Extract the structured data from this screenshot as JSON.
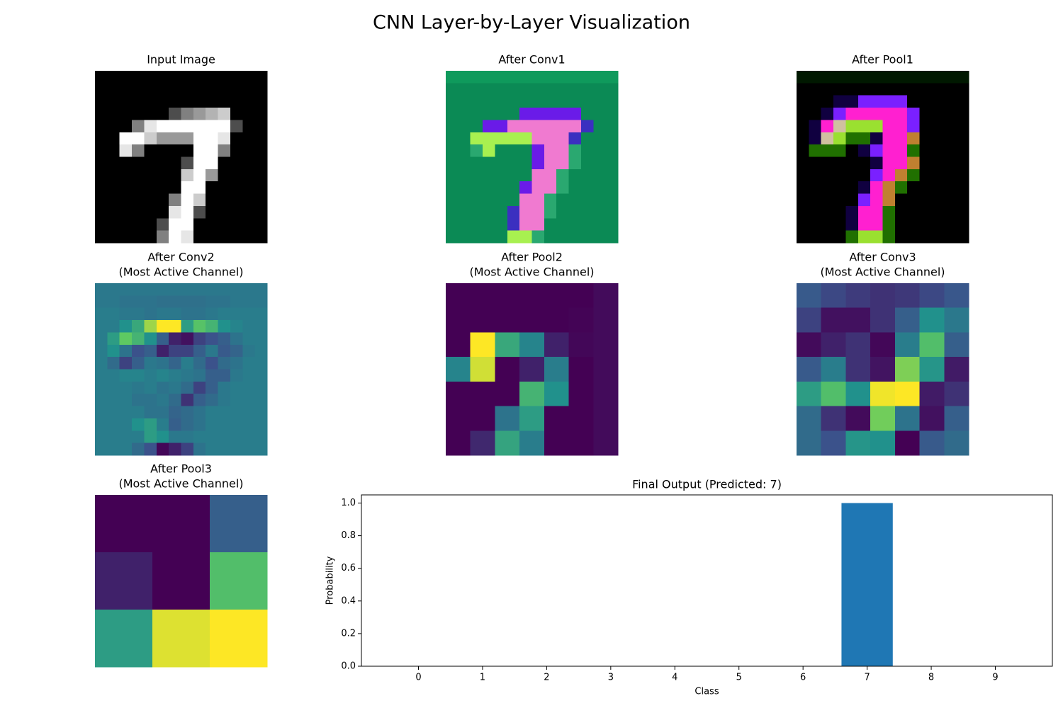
{
  "title": "CNN Layer-by-Layer Visualization",
  "chart_data": [
    {
      "type": "heatmap",
      "title": "Input Image",
      "cmap": "gray",
      "values": [
        [
          0,
          0,
          0,
          0,
          0,
          0,
          0,
          0,
          0,
          0,
          0,
          0,
          0,
          0
        ],
        [
          0,
          0,
          0,
          0,
          0,
          0,
          0,
          0,
          0,
          0,
          0,
          0,
          0,
          0
        ],
        [
          0,
          0,
          0,
          0,
          0,
          0,
          0,
          0,
          0,
          0,
          0,
          0,
          0,
          0
        ],
        [
          0,
          0,
          0,
          0,
          0,
          0,
          0.3,
          0.5,
          0.6,
          0.7,
          0.8,
          0,
          0,
          0
        ],
        [
          0,
          0,
          0,
          0.5,
          0.9,
          1,
          1,
          1,
          1,
          1,
          1,
          0.3,
          0,
          0
        ],
        [
          0,
          0,
          1,
          1,
          0.8,
          0.6,
          0.6,
          0.6,
          1,
          1,
          0.9,
          0,
          0,
          0
        ],
        [
          0,
          0,
          0.9,
          0.5,
          0,
          0,
          0,
          0,
          1,
          1,
          0.5,
          0,
          0,
          0
        ],
        [
          0,
          0,
          0,
          0,
          0,
          0,
          0,
          0.3,
          1,
          1,
          0,
          0,
          0,
          0
        ],
        [
          0,
          0,
          0,
          0,
          0,
          0,
          0,
          0.8,
          1,
          0.6,
          0,
          0,
          0,
          0
        ],
        [
          0,
          0,
          0,
          0,
          0,
          0,
          0,
          1,
          1,
          0,
          0,
          0,
          0,
          0
        ],
        [
          0,
          0,
          0,
          0,
          0,
          0,
          0.5,
          1,
          0.8,
          0,
          0,
          0,
          0,
          0
        ],
        [
          0,
          0,
          0,
          0,
          0,
          0,
          0.9,
          1,
          0.3,
          0,
          0,
          0,
          0,
          0
        ],
        [
          0,
          0,
          0,
          0,
          0,
          0.3,
          1,
          1,
          0,
          0,
          0,
          0,
          0,
          0
        ],
        [
          0,
          0,
          0,
          0,
          0,
          0.5,
          1,
          0.9,
          0,
          0,
          0,
          0,
          0,
          0
        ]
      ]
    },
    {
      "type": "image",
      "title": "After Conv1",
      "pixels": [
        [
          "#0f9a5c",
          "#0f9a5c",
          "#0f9a5c",
          "#0f9a5c",
          "#0f9a5c",
          "#0f9a5c",
          "#0f9a5c",
          "#0f9a5c",
          "#0f9a5c",
          "#0f9a5c",
          "#0f9a5c",
          "#0f9a5c",
          "#0f9a5c",
          "#0f9a5c"
        ],
        [
          "#0b8a55",
          "#0b8a55",
          "#0b8a55",
          "#0b8a55",
          "#0b8a55",
          "#0b8a55",
          "#0b8a55",
          "#0b8a55",
          "#0b8a55",
          "#0b8a55",
          "#0b8a55",
          "#0b8a55",
          "#0b8a55",
          "#0b8a55"
        ],
        [
          "#0b8a55",
          "#0b8a55",
          "#0b8a55",
          "#0b8a55",
          "#0b8a55",
          "#0b8a55",
          "#0b8a55",
          "#0b8a55",
          "#0b8a55",
          "#0b8a55",
          "#0b8a55",
          "#0b8a55",
          "#0b8a55",
          "#0b8a55"
        ],
        [
          "#0b8a55",
          "#0b8a55",
          "#0b8a55",
          "#0b8a55",
          "#0b8a55",
          "#0b8a55",
          "#6a1be8",
          "#6a1be8",
          "#6a1be8",
          "#6a1be8",
          "#6a1be8",
          "#0b8a55",
          "#0b8a55",
          "#0b8a55"
        ],
        [
          "#0b8a55",
          "#0b8a55",
          "#0b8a55",
          "#6a1be8",
          "#6a1be8",
          "#f07ad0",
          "#f07ad0",
          "#f07ad0",
          "#f07ad0",
          "#f07ad0",
          "#f07ad0",
          "#3b2fc0",
          "#0b8a55",
          "#0b8a55"
        ],
        [
          "#0b8a55",
          "#0b8a55",
          "#a8f050",
          "#a8f050",
          "#a8f050",
          "#a8f050",
          "#a8f050",
          "#f07ad0",
          "#f07ad0",
          "#f07ad0",
          "#3b2fc0",
          "#0b8a55",
          "#0b8a55",
          "#0b8a55"
        ],
        [
          "#0b8a55",
          "#0b8a55",
          "#2aa870",
          "#a8f050",
          "#0b8a55",
          "#0b8a55",
          "#0b8a55",
          "#6a1be8",
          "#f07ad0",
          "#f07ad0",
          "#2aa870",
          "#0b8a55",
          "#0b8a55",
          "#0b8a55"
        ],
        [
          "#0b8a55",
          "#0b8a55",
          "#0b8a55",
          "#0b8a55",
          "#0b8a55",
          "#0b8a55",
          "#0b8a55",
          "#6a1be8",
          "#f07ad0",
          "#f07ad0",
          "#2aa870",
          "#0b8a55",
          "#0b8a55",
          "#0b8a55"
        ],
        [
          "#0b8a55",
          "#0b8a55",
          "#0b8a55",
          "#0b8a55",
          "#0b8a55",
          "#0b8a55",
          "#0b8a55",
          "#f07ad0",
          "#f07ad0",
          "#2aa870",
          "#0b8a55",
          "#0b8a55",
          "#0b8a55",
          "#0b8a55"
        ],
        [
          "#0b8a55",
          "#0b8a55",
          "#0b8a55",
          "#0b8a55",
          "#0b8a55",
          "#0b8a55",
          "#6a1be8",
          "#f07ad0",
          "#f07ad0",
          "#2aa870",
          "#0b8a55",
          "#0b8a55",
          "#0b8a55",
          "#0b8a55"
        ],
        [
          "#0b8a55",
          "#0b8a55",
          "#0b8a55",
          "#0b8a55",
          "#0b8a55",
          "#0b8a55",
          "#f07ad0",
          "#f07ad0",
          "#2aa870",
          "#0b8a55",
          "#0b8a55",
          "#0b8a55",
          "#0b8a55",
          "#0b8a55"
        ],
        [
          "#0b8a55",
          "#0b8a55",
          "#0b8a55",
          "#0b8a55",
          "#0b8a55",
          "#3b2fc0",
          "#f07ad0",
          "#f07ad0",
          "#2aa870",
          "#0b8a55",
          "#0b8a55",
          "#0b8a55",
          "#0b8a55",
          "#0b8a55"
        ],
        [
          "#0b8a55",
          "#0b8a55",
          "#0b8a55",
          "#0b8a55",
          "#0b8a55",
          "#3b2fc0",
          "#f07ad0",
          "#f07ad0",
          "#0b8a55",
          "#0b8a55",
          "#0b8a55",
          "#0b8a55",
          "#0b8a55",
          "#0b8a55"
        ],
        [
          "#0b8a55",
          "#0b8a55",
          "#0b8a55",
          "#0b8a55",
          "#0b8a55",
          "#a8f050",
          "#a8f050",
          "#2aa870",
          "#0b8a55",
          "#0b8a55",
          "#0b8a55",
          "#0b8a55",
          "#0b8a55",
          "#0b8a55"
        ]
      ]
    },
    {
      "type": "image",
      "title": "After Pool1",
      "pixels": [
        [
          "#001800",
          "#001800",
          "#001800",
          "#001800",
          "#001800",
          "#001800",
          "#001800",
          "#001800",
          "#001800",
          "#001800",
          "#001800",
          "#001800",
          "#001800",
          "#001800"
        ],
        [
          "#000000",
          "#000000",
          "#000000",
          "#000000",
          "#000000",
          "#000000",
          "#000000",
          "#000000",
          "#000000",
          "#000000",
          "#000000",
          "#000000",
          "#000000",
          "#000000"
        ],
        [
          "#000000",
          "#000000",
          "#000000",
          "#100040",
          "#100040",
          "#7a20ff",
          "#7a20ff",
          "#7a20ff",
          "#7a20ff",
          "#000000",
          "#000000",
          "#000000",
          "#000000",
          "#000000"
        ],
        [
          "#000000",
          "#000000",
          "#100040",
          "#7a20ff",
          "#ff20d0",
          "#ff20d0",
          "#ff20d0",
          "#ff20d0",
          "#ff20d0",
          "#7a20ff",
          "#000000",
          "#000000",
          "#000000",
          "#000000"
        ],
        [
          "#000000",
          "#100040",
          "#ff20d0",
          "#d0c0a0",
          "#9ae030",
          "#9ae030",
          "#9ae030",
          "#ff20d0",
          "#ff20d0",
          "#7a20ff",
          "#000000",
          "#000000",
          "#000000",
          "#000000"
        ],
        [
          "#000000",
          "#100040",
          "#d0c0a0",
          "#9ae030",
          "#207000",
          "#207000",
          "#100040",
          "#ff20d0",
          "#ff20d0",
          "#c08030",
          "#000000",
          "#000000",
          "#000000",
          "#000000"
        ],
        [
          "#000000",
          "#207000",
          "#207000",
          "#207000",
          "#000000",
          "#100040",
          "#7a20ff",
          "#ff20d0",
          "#ff20d0",
          "#207000",
          "#000000",
          "#000000",
          "#000000",
          "#000000"
        ],
        [
          "#000000",
          "#000000",
          "#000000",
          "#000000",
          "#000000",
          "#000000",
          "#100040",
          "#ff20d0",
          "#ff20d0",
          "#c08030",
          "#000000",
          "#000000",
          "#000000",
          "#000000"
        ],
        [
          "#000000",
          "#000000",
          "#000000",
          "#000000",
          "#000000",
          "#000000",
          "#7a20ff",
          "#ff20d0",
          "#c08030",
          "#207000",
          "#000000",
          "#000000",
          "#000000",
          "#000000"
        ],
        [
          "#000000",
          "#000000",
          "#000000",
          "#000000",
          "#000000",
          "#100040",
          "#ff20d0",
          "#c08030",
          "#207000",
          "#000000",
          "#000000",
          "#000000",
          "#000000",
          "#000000"
        ],
        [
          "#000000",
          "#000000",
          "#000000",
          "#000000",
          "#000000",
          "#7a20ff",
          "#ff20d0",
          "#c08030",
          "#000000",
          "#000000",
          "#000000",
          "#000000",
          "#000000",
          "#000000"
        ],
        [
          "#000000",
          "#000000",
          "#000000",
          "#000000",
          "#100040",
          "#ff20d0",
          "#ff20d0",
          "#207000",
          "#000000",
          "#000000",
          "#000000",
          "#000000",
          "#000000",
          "#000000"
        ],
        [
          "#000000",
          "#000000",
          "#000000",
          "#000000",
          "#100040",
          "#ff20d0",
          "#ff20d0",
          "#207000",
          "#000000",
          "#000000",
          "#000000",
          "#000000",
          "#000000",
          "#000000"
        ],
        [
          "#000000",
          "#000000",
          "#000000",
          "#000000",
          "#207000",
          "#9ae030",
          "#9ae030",
          "#207000",
          "#000000",
          "#000000",
          "#000000",
          "#000000",
          "#000000",
          "#000000"
        ]
      ]
    },
    {
      "type": "heatmap",
      "title": "After Conv2",
      "subtitle": "(Most Active Channel)",
      "cmap": "viridis",
      "values": [
        [
          0.4,
          0.4,
          0.4,
          0.4,
          0.4,
          0.4,
          0.4,
          0.4,
          0.4,
          0.4,
          0.4,
          0.4,
          0.4,
          0.4
        ],
        [
          0.4,
          0.4,
          0.38,
          0.38,
          0.38,
          0.37,
          0.37,
          0.37,
          0.37,
          0.38,
          0.38,
          0.4,
          0.4,
          0.4
        ],
        [
          0.42,
          0.42,
          0.4,
          0.4,
          0.38,
          0.4,
          0.4,
          0.38,
          0.38,
          0.4,
          0.42,
          0.42,
          0.42,
          0.42
        ],
        [
          0.42,
          0.42,
          0.5,
          0.6,
          0.85,
          1,
          1,
          0.55,
          0.72,
          0.65,
          0.5,
          0.45,
          0.42,
          0.42
        ],
        [
          0.42,
          0.55,
          0.75,
          0.65,
          0.5,
          0.3,
          0.1,
          0.05,
          0.2,
          0.25,
          0.3,
          0.38,
          0.42,
          0.42
        ],
        [
          0.42,
          0.5,
          0.38,
          0.25,
          0.3,
          0.1,
          0.2,
          0.2,
          0.3,
          0.4,
          0.28,
          0.32,
          0.4,
          0.42
        ],
        [
          0.42,
          0.35,
          0.2,
          0.3,
          0.4,
          0.38,
          0.32,
          0.42,
          0.35,
          0.25,
          0.35,
          0.38,
          0.42,
          0.42
        ],
        [
          0.42,
          0.42,
          0.45,
          0.45,
          0.42,
          0.45,
          0.42,
          0.4,
          0.38,
          0.3,
          0.3,
          0.4,
          0.42,
          0.42
        ],
        [
          0.42,
          0.42,
          0.42,
          0.4,
          0.42,
          0.38,
          0.4,
          0.35,
          0.2,
          0.3,
          0.4,
          0.42,
          0.42,
          0.42
        ],
        [
          0.42,
          0.42,
          0.42,
          0.38,
          0.38,
          0.4,
          0.35,
          0.15,
          0.3,
          0.35,
          0.4,
          0.42,
          0.42,
          0.42
        ],
        [
          0.42,
          0.42,
          0.42,
          0.42,
          0.38,
          0.38,
          0.32,
          0.35,
          0.38,
          0.42,
          0.42,
          0.42,
          0.42,
          0.42
        ],
        [
          0.42,
          0.42,
          0.42,
          0.5,
          0.55,
          0.42,
          0.3,
          0.35,
          0.38,
          0.42,
          0.42,
          0.42,
          0.42,
          0.42
        ],
        [
          0.42,
          0.42,
          0.42,
          0.42,
          0.55,
          0.5,
          0.4,
          0.4,
          0.42,
          0.42,
          0.42,
          0.42,
          0.42,
          0.42
        ],
        [
          0.42,
          0.42,
          0.42,
          0.35,
          0.25,
          0.02,
          0.1,
          0.2,
          0.38,
          0.42,
          0.42,
          0.42,
          0.42,
          0.42
        ]
      ]
    },
    {
      "type": "heatmap",
      "title": "After Pool2",
      "subtitle": "(Most Active Channel)",
      "cmap": "viridis",
      "values": [
        [
          0,
          0,
          0,
          0,
          0,
          0,
          0.03
        ],
        [
          0,
          0,
          0,
          0,
          0,
          0.01,
          0.03
        ],
        [
          0,
          1,
          0.6,
          0.45,
          0.1,
          0.02,
          0.03
        ],
        [
          0.45,
          0.93,
          0,
          0.1,
          0.42,
          0,
          0.03
        ],
        [
          0,
          0,
          0,
          0.65,
          0.5,
          0,
          0.03
        ],
        [
          0,
          0,
          0.38,
          0.55,
          0,
          0,
          0.03
        ],
        [
          0,
          0.12,
          0.58,
          0.42,
          0,
          0,
          0.03
        ]
      ]
    },
    {
      "type": "heatmap",
      "title": "After Conv3",
      "subtitle": "(Most Active Channel)",
      "cmap": "viridis",
      "values": [
        [
          0.28,
          0.22,
          0.18,
          0.15,
          0.17,
          0.22,
          0.27
        ],
        [
          0.2,
          0.05,
          0.05,
          0.15,
          0.3,
          0.5,
          0.4
        ],
        [
          0.03,
          0.1,
          0.15,
          0.02,
          0.42,
          0.7,
          0.3
        ],
        [
          0.28,
          0.42,
          0.15,
          0.06,
          0.8,
          0.52,
          0.08
        ],
        [
          0.55,
          0.7,
          0.5,
          0.98,
          1,
          0.08,
          0.15
        ],
        [
          0.35,
          0.15,
          0.03,
          0.78,
          0.38,
          0.05,
          0.3
        ],
        [
          0.35,
          0.25,
          0.52,
          0.5,
          0,
          0.28,
          0.35
        ]
      ]
    },
    {
      "type": "heatmap",
      "title": "After Pool3",
      "subtitle": "(Most Active Channel)",
      "cmap": "viridis",
      "values": [
        [
          0,
          0,
          0.3
        ],
        [
          0.1,
          0,
          0.7
        ],
        [
          0.55,
          0.95,
          1
        ]
      ]
    },
    {
      "type": "bar",
      "title": "Final Output (Predicted: 7)",
      "xlabel": "Class",
      "ylabel": "Probability",
      "x": [
        0,
        1,
        2,
        3,
        4,
        5,
        6,
        7,
        8,
        9
      ],
      "values": [
        0,
        0,
        0,
        0,
        0,
        0,
        0,
        1,
        0,
        0
      ],
      "color": "#1f77b4",
      "xlim": [
        -0.89,
        9.89
      ],
      "ylim": [
        0,
        1.05
      ],
      "xticks": [
        0,
        1,
        2,
        3,
        4,
        5,
        6,
        7,
        8,
        9
      ],
      "yticks": [
        {
          "value": 0,
          "label": "0.0"
        },
        {
          "value": 0.2,
          "label": "0.2"
        },
        {
          "value": 0.4,
          "label": "0.4"
        },
        {
          "value": 0.6,
          "label": "0.6"
        },
        {
          "value": 0.8,
          "label": "0.8"
        },
        {
          "value": 1,
          "label": "1.0"
        }
      ]
    }
  ]
}
